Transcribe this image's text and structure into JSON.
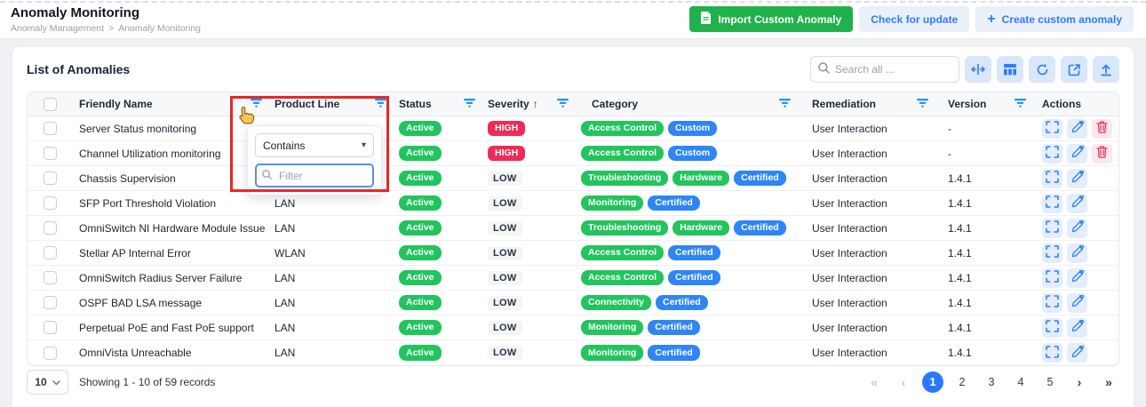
{
  "page": {
    "title": "Anomaly Monitoring",
    "breadcrumb": {
      "parent": "Anomaly Management",
      "sep": ">",
      "current": "Anomaly Monitoring"
    }
  },
  "header_buttons": {
    "import_label": "Import Custom Anomaly",
    "check_label": "Check for update",
    "create_label": "Create custom anomaly",
    "create_plus": "+"
  },
  "card": {
    "title": "List of Anomalies",
    "search_placeholder": "Search all ..."
  },
  "filter_popup": {
    "operator": "Contains",
    "operator_caret": "▾",
    "filter_placeholder": "Filter"
  },
  "table": {
    "columns": [
      {
        "label": "Friendly Name"
      },
      {
        "label": "Product Line"
      },
      {
        "label": "Status"
      },
      {
        "label": "Severity",
        "sort": "↑"
      },
      {
        "label": "Category"
      },
      {
        "label": "Remediation"
      },
      {
        "label": "Version"
      },
      {
        "label": "Actions"
      }
    ],
    "rows": [
      {
        "name": "Server Status monitoring",
        "product_line": "",
        "status": "Active",
        "severity": {
          "label": "HIGH",
          "level": "high"
        },
        "categories": [
          {
            "label": "Access Control",
            "color": "green"
          },
          {
            "label": "Custom",
            "color": "blue"
          }
        ],
        "remediation": "User Interaction",
        "version": "-",
        "actions": [
          "expand",
          "edit",
          "delete"
        ]
      },
      {
        "name": "Channel Utilization monitoring",
        "product_line": "",
        "status": "Active",
        "severity": {
          "label": "HIGH",
          "level": "high"
        },
        "categories": [
          {
            "label": "Access Control",
            "color": "green"
          },
          {
            "label": "Custom",
            "color": "blue"
          }
        ],
        "remediation": "User Interaction",
        "version": "-",
        "actions": [
          "expand",
          "edit",
          "delete"
        ]
      },
      {
        "name": "Chassis Supervision",
        "product_line": "LAN",
        "status": "Active",
        "severity": {
          "label": "LOW",
          "level": "low"
        },
        "categories": [
          {
            "label": "Troubleshooting",
            "color": "green"
          },
          {
            "label": "Hardware",
            "color": "green"
          },
          {
            "label": "Certified",
            "color": "blue"
          }
        ],
        "remediation": "User Interaction",
        "version": "1.4.1",
        "actions": [
          "expand",
          "edit"
        ]
      },
      {
        "name": "SFP Port Threshold Violation",
        "product_line": "LAN",
        "status": "Active",
        "severity": {
          "label": "LOW",
          "level": "low"
        },
        "categories": [
          {
            "label": "Monitoring",
            "color": "green"
          },
          {
            "label": "Certified",
            "color": "blue"
          }
        ],
        "remediation": "User Interaction",
        "version": "1.4.1",
        "actions": [
          "expand",
          "edit"
        ]
      },
      {
        "name": "OmniSwitch NI Hardware Module Issue",
        "product_line": "LAN",
        "status": "Active",
        "severity": {
          "label": "LOW",
          "level": "low"
        },
        "categories": [
          {
            "label": "Troubleshooting",
            "color": "green"
          },
          {
            "label": "Hardware",
            "color": "green"
          },
          {
            "label": "Certified",
            "color": "blue"
          }
        ],
        "remediation": "User Interaction",
        "version": "1.4.1",
        "actions": [
          "expand",
          "edit"
        ]
      },
      {
        "name": "Stellar AP Internal Error",
        "product_line": "WLAN",
        "status": "Active",
        "severity": {
          "label": "LOW",
          "level": "low"
        },
        "categories": [
          {
            "label": "Access Control",
            "color": "green"
          },
          {
            "label": "Certified",
            "color": "blue"
          }
        ],
        "remediation": "User Interaction",
        "version": "1.4.1",
        "actions": [
          "expand",
          "edit"
        ]
      },
      {
        "name": "OmniSwitch Radius Server Failure",
        "product_line": "LAN",
        "status": "Active",
        "severity": {
          "label": "LOW",
          "level": "low"
        },
        "categories": [
          {
            "label": "Access Control",
            "color": "green"
          },
          {
            "label": "Certified",
            "color": "blue"
          }
        ],
        "remediation": "User Interaction",
        "version": "1.4.1",
        "actions": [
          "expand",
          "edit"
        ]
      },
      {
        "name": "OSPF BAD LSA message",
        "product_line": "LAN",
        "status": "Active",
        "severity": {
          "label": "LOW",
          "level": "low"
        },
        "categories": [
          {
            "label": "Connectivity",
            "color": "green"
          },
          {
            "label": "Certified",
            "color": "blue"
          }
        ],
        "remediation": "User Interaction",
        "version": "1.4.1",
        "actions": [
          "expand",
          "edit"
        ]
      },
      {
        "name": "Perpetual PoE and Fast PoE support",
        "product_line": "LAN",
        "status": "Active",
        "severity": {
          "label": "LOW",
          "level": "low"
        },
        "categories": [
          {
            "label": "Monitoring",
            "color": "green"
          },
          {
            "label": "Certified",
            "color": "blue"
          }
        ],
        "remediation": "User Interaction",
        "version": "1.4.1",
        "actions": [
          "expand",
          "edit"
        ]
      },
      {
        "name": "OmniVista Unreachable",
        "product_line": "LAN",
        "status": "Active",
        "severity": {
          "label": "LOW",
          "level": "low"
        },
        "categories": [
          {
            "label": "Monitoring",
            "color": "green"
          },
          {
            "label": "Certified",
            "color": "blue"
          }
        ],
        "remediation": "User Interaction",
        "version": "1.4.1",
        "actions": [
          "expand",
          "edit"
        ]
      }
    ]
  },
  "footer": {
    "page_size": "10",
    "showing": "Showing 1 - 10 of 59 records",
    "pages": [
      "1",
      "2",
      "3",
      "4",
      "5"
    ],
    "active_page": "1",
    "first": "«",
    "prev": "‹",
    "next": "›",
    "last": "»"
  },
  "colors": {
    "accent_blue": "#2f7df6",
    "green": "#21c45d",
    "badge_blue": "#2e86f6",
    "high_red": "#ee2b57",
    "delete_red": "#e8315b",
    "button_green": "#21b14c",
    "highlight_red": "#e82727",
    "active_page_blue": "#2979ff"
  }
}
